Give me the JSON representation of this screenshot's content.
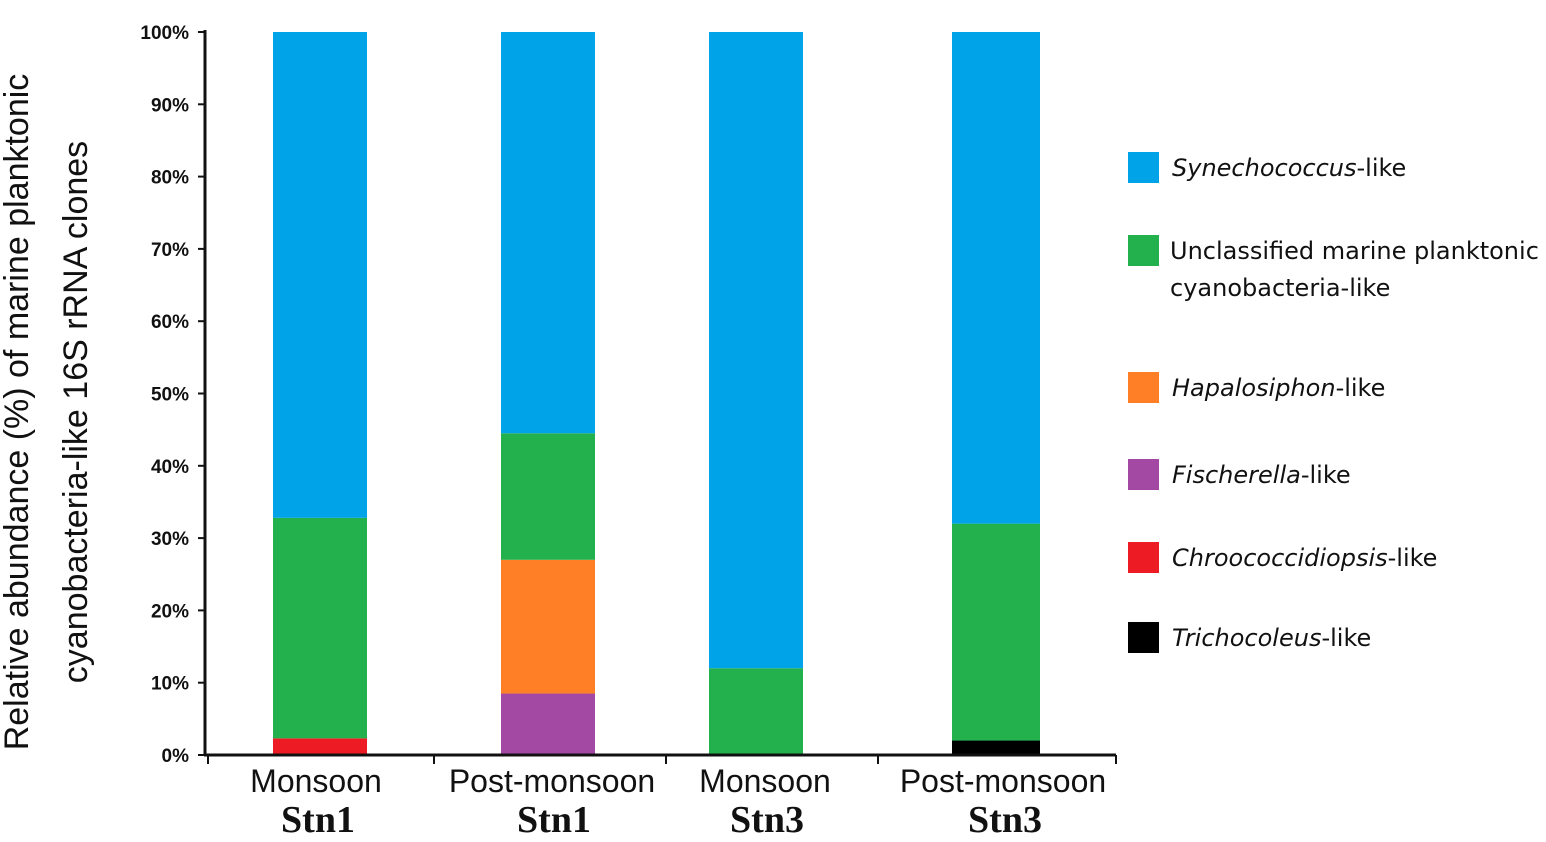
{
  "chart_data": {
    "type": "bar",
    "stacked": true,
    "ylabel_lines": [
      "Relative abundance (%) of marine planktonic",
      "cyanobacteria-like 16S rRNA clones"
    ],
    "ylim": [
      0,
      100
    ],
    "yticks": [
      "0%",
      "10%",
      "20%",
      "30%",
      "40%",
      "50%",
      "60%",
      "70%",
      "80%",
      "90%",
      "100%"
    ],
    "categories": [
      {
        "season": "Monsoon",
        "station": "Stn1"
      },
      {
        "season": "Post-monsoon",
        "station": "Stn1"
      },
      {
        "season": "Monsoon",
        "station": "Stn3"
      },
      {
        "season": "Post-monsoon",
        "station": "Stn3"
      }
    ],
    "series": [
      {
        "name": "Trichocoleus-like",
        "italic": "Trichocoleus",
        "suffix": "-like",
        "color": "#000000",
        "values": [
          0,
          0,
          0,
          2
        ]
      },
      {
        "name": "Chroococcidiopsis-like",
        "italic": "Chroococcidiopsis",
        "suffix": "-like",
        "color": "#ed1c24",
        "values": [
          2.3,
          0,
          0,
          0
        ]
      },
      {
        "name": "Fischerella-like",
        "italic": "Fischerella",
        "suffix": "-like",
        "color": "#a349a4",
        "values": [
          0,
          8.5,
          0,
          0
        ]
      },
      {
        "name": "Hapalosiphon-like",
        "italic": "Hapalosiphon",
        "suffix": "-like",
        "color": "#ff7f27",
        "values": [
          0,
          18.5,
          0,
          0
        ]
      },
      {
        "name": "Unclassified marine planktonic cyanobacteria-like",
        "lines": [
          "Unclassified marine planktonic",
          "cyanobacteria-like"
        ],
        "color": "#22b14c",
        "values": [
          30.5,
          17.5,
          12,
          30
        ]
      },
      {
        "name": "Synechococcus-like",
        "italic": "Synechococcus",
        "suffix": "-like",
        "color": "#00a2e8",
        "values": [
          67.2,
          55.5,
          88,
          68
        ]
      }
    ],
    "legend_order": [
      "Synechococcus-like",
      "Unclassified marine planktonic cyanobacteria-like",
      "Hapalosiphon-like",
      "Fischerella-like",
      "Chroococcidiopsis-like",
      "Trichocoleus-like"
    ],
    "legend_position": "right",
    "grid": false
  }
}
